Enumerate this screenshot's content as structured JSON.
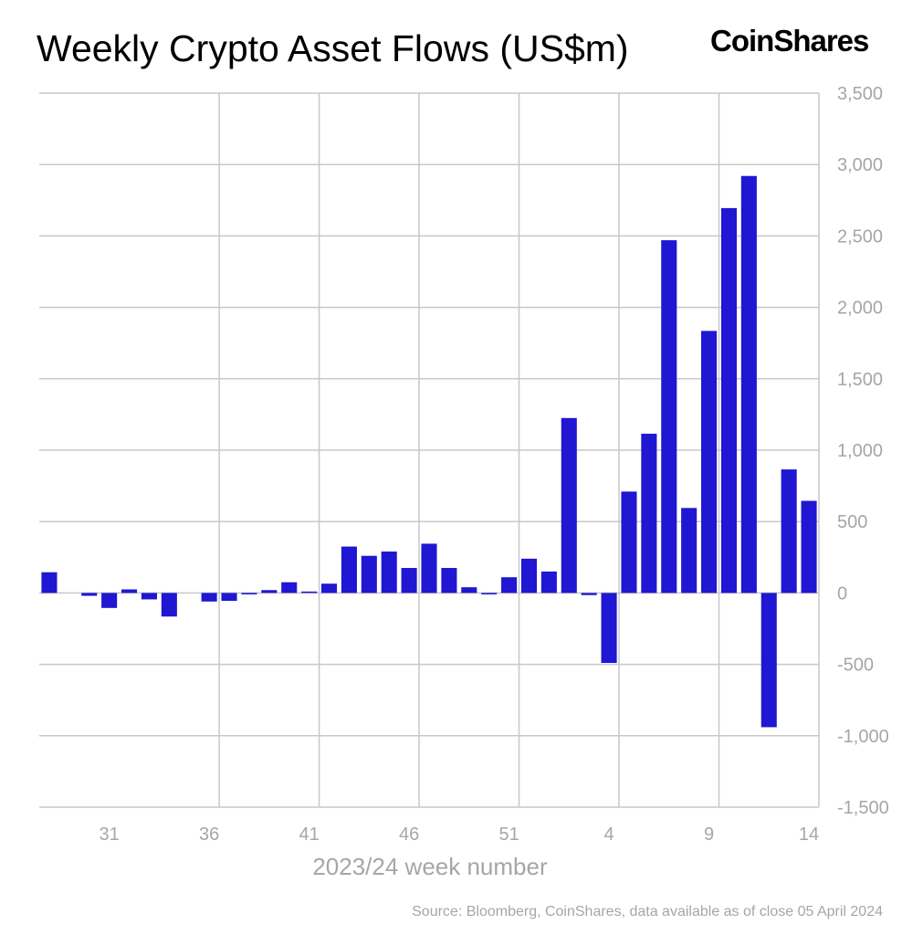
{
  "title": "Weekly Crypto Asset Flows (US$m)",
  "brand": "CoinShares",
  "source": "Source: Bloomberg, CoinShares, data available as of close 05 April 2024",
  "colors": {
    "bar": "#1f17d1",
    "grid": "#c8c8c8",
    "axis_text": "#a6a6a6"
  },
  "chart_data": {
    "type": "bar",
    "title": "Weekly Crypto Asset Flows (US$m)",
    "xlabel": "2023/24 week number",
    "ylabel": "",
    "ylim": [
      -1500,
      3500
    ],
    "yticks": [
      3500,
      3000,
      2500,
      2000,
      1500,
      1000,
      500,
      0,
      -500,
      -1000,
      -1500
    ],
    "ytick_labels": [
      "3,500",
      "3,000",
      "2,500",
      "2,000",
      "1,500",
      "1,000",
      "500",
      "0",
      "-500",
      "-1,000",
      "-1,500"
    ],
    "y_axis_position": "right",
    "grid": true,
    "categories": [
      "28",
      "29",
      "30",
      "31",
      "32",
      "33",
      "34",
      "35",
      "36",
      "37",
      "38",
      "39",
      "40",
      "41",
      "42",
      "43",
      "44",
      "45",
      "46",
      "47",
      "48",
      "49",
      "50",
      "51",
      "52",
      "1",
      "2",
      "3",
      "4",
      "5",
      "6",
      "7",
      "8",
      "9",
      "10",
      "11",
      "12",
      "13",
      "14"
    ],
    "xtick_labels": [
      "31",
      "36",
      "41",
      "46",
      "51",
      "4",
      "9",
      "14"
    ],
    "values": [
      145,
      0,
      -20,
      -105,
      25,
      -45,
      -165,
      0,
      -60,
      -55,
      -10,
      20,
      75,
      10,
      65,
      325,
      260,
      290,
      175,
      345,
      175,
      40,
      -10,
      110,
      240,
      150,
      1225,
      -15,
      -490,
      710,
      1115,
      2470,
      595,
      1835,
      2695,
      2920,
      -940,
      865,
      645
    ]
  }
}
